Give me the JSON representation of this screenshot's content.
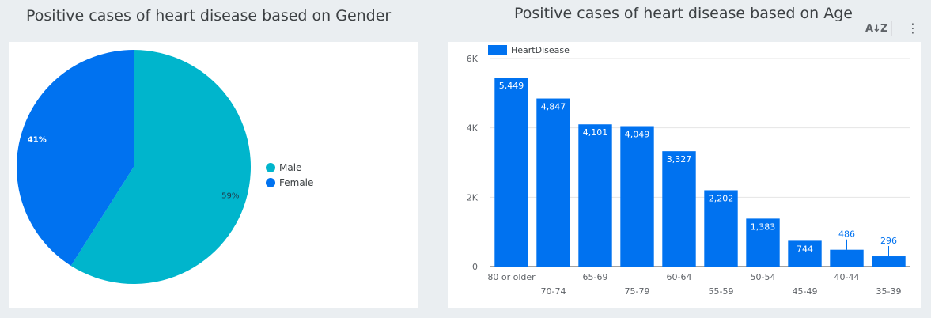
{
  "charts": {
    "gender_title": "Positive cases of heart disease based on Gender",
    "age_title": "Positive cases of heart disease based on Age"
  },
  "icons": {
    "sort": "sort-az-icon",
    "menu": "more-vert-icon"
  },
  "colors": {
    "male": "#00b5cc",
    "female": "#0072f0",
    "bar": "#0072f0",
    "background": "#eaeef1"
  },
  "chart_data": [
    {
      "type": "pie",
      "title": "Positive cases of heart disease based on Gender",
      "slices": [
        {
          "label": "Male",
          "value": 59,
          "display": "59%"
        },
        {
          "label": "Female",
          "value": 41,
          "display": "41%"
        }
      ],
      "legend": "right"
    },
    {
      "type": "bar",
      "title": "Positive cases of heart disease based on Age",
      "series_name": "HeartDisease",
      "categories": [
        "80 or older",
        "70-74",
        "65-69",
        "75-79",
        "60-64",
        "55-59",
        "50-54",
        "45-49",
        "40-44",
        "35-39"
      ],
      "values": [
        5449,
        4847,
        4101,
        4049,
        3327,
        2202,
        1383,
        744,
        486,
        296
      ],
      "value_labels": [
        "5,449",
        "4,847",
        "4,101",
        "4,049",
        "3,327",
        "2,202",
        "1,383",
        "744",
        "486",
        "296"
      ],
      "yticks": [
        "0",
        "2K",
        "4K",
        "6K"
      ],
      "ylim": [
        0,
        6000
      ],
      "grid": true,
      "legend": "top-left"
    }
  ]
}
